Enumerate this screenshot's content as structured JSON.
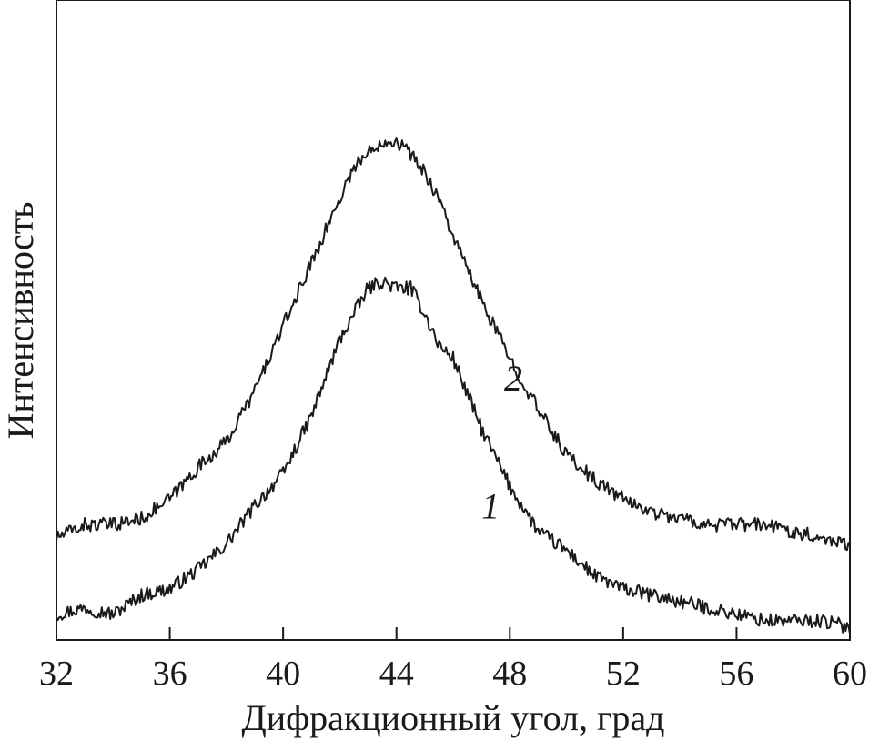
{
  "chart_data": {
    "type": "line",
    "title": "",
    "xlabel": "Дифракционный угол, град",
    "ylabel": "Интенсивность",
    "xlim": [
      32,
      60
    ],
    "ylim": [
      0,
      1
    ],
    "xticks": [
      32,
      36,
      40,
      44,
      48,
      52,
      56,
      60
    ],
    "yticks_shown": false,
    "grid": false,
    "legend": "none",
    "line_color": "#1a1a1a",
    "series": [
      {
        "name": "1",
        "x": [
          32,
          33,
          34,
          35,
          36,
          37,
          38,
          39,
          40,
          41,
          42,
          42.5,
          43,
          43.5,
          44,
          44.5,
          45,
          45.5,
          46,
          47,
          48,
          49,
          50,
          51,
          52,
          53,
          54,
          55,
          56,
          57,
          58,
          59,
          60
        ],
        "y": [
          0.04,
          0.05,
          0.04,
          0.07,
          0.08,
          0.11,
          0.15,
          0.21,
          0.26,
          0.35,
          0.47,
          0.51,
          0.55,
          0.56,
          0.55,
          0.55,
          0.51,
          0.46,
          0.44,
          0.33,
          0.24,
          0.17,
          0.14,
          0.1,
          0.08,
          0.07,
          0.06,
          0.05,
          0.04,
          0.03,
          0.03,
          0.03,
          0.02
        ]
      },
      {
        "name": "2",
        "x": [
          32,
          33,
          34,
          35,
          36,
          37,
          38,
          39,
          40,
          41,
          42,
          42.5,
          43,
          43.5,
          44,
          44.5,
          45,
          45.5,
          46,
          47,
          48,
          49,
          50,
          51,
          52,
          53,
          54,
          55,
          56,
          57,
          58,
          59,
          60
        ],
        "y": [
          0.16,
          0.18,
          0.18,
          0.19,
          0.22,
          0.27,
          0.31,
          0.39,
          0.49,
          0.59,
          0.69,
          0.74,
          0.76,
          0.78,
          0.78,
          0.76,
          0.73,
          0.69,
          0.63,
          0.53,
          0.44,
          0.36,
          0.29,
          0.25,
          0.22,
          0.2,
          0.19,
          0.18,
          0.18,
          0.18,
          0.17,
          0.16,
          0.15
        ]
      }
    ],
    "annotations": [
      {
        "text": "1",
        "series": "1"
      },
      {
        "text": "2",
        "series": "2"
      }
    ]
  }
}
